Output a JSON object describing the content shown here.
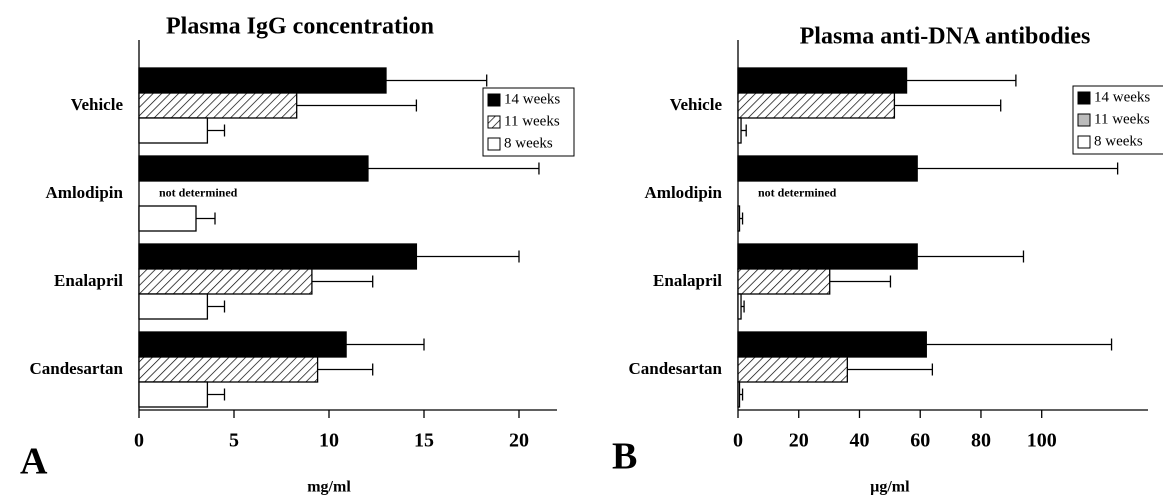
{
  "chart_data": [
    {
      "type": "bar",
      "orientation": "horizontal",
      "title": "Plasma IgG concentration",
      "panel_label": "A",
      "xlabel": "mg/ml",
      "categories": [
        "Vehicle",
        "Amlodipin",
        "Enalapril",
        "Candesartan"
      ],
      "series": [
        {
          "name": "14 weeks",
          "color": "#000000",
          "pattern": "solid",
          "values": [
            13.0,
            12.05,
            14.6,
            10.9
          ],
          "errors": [
            5.3,
            9.0,
            5.4,
            4.1
          ]
        },
        {
          "name": "11 weeks",
          "color": "#ffffff",
          "pattern": "hatch",
          "values": [
            8.3,
            null,
            9.1,
            9.4
          ],
          "errors": [
            6.3,
            null,
            3.2,
            2.9
          ]
        },
        {
          "name": "8 weeks",
          "color": "#ffffff",
          "pattern": "solid",
          "values": [
            3.6,
            3.0,
            3.6,
            3.6
          ],
          "errors": [
            0.9,
            1.0,
            0.9,
            0.9
          ]
        }
      ],
      "annotation": "not determined",
      "xlim": [
        0,
        22
      ],
      "xticks": [
        0,
        5,
        10,
        15,
        20
      ],
      "legend": "upper right",
      "legend_swatch": "pattern"
    },
    {
      "type": "bar",
      "orientation": "horizontal",
      "title": "Plasma anti-DNA antibodies",
      "panel_label": "B",
      "xlabel": "µg/ml",
      "categories": [
        "Vehicle",
        "Amlodipin",
        "Enalapril",
        "Candesartan"
      ],
      "series": [
        {
          "name": "14 weeks",
          "color": "#000000",
          "pattern": "solid",
          "values": [
            55.5,
            59,
            59,
            62
          ],
          "errors": [
            36,
            66,
            35,
            61
          ]
        },
        {
          "name": "11 weeks",
          "color": "#bbbbbb",
          "pattern": "hatch",
          "values": [
            51.5,
            null,
            30.2,
            36
          ],
          "errors": [
            35,
            null,
            20,
            28
          ]
        },
        {
          "name": "8 weeks",
          "color": "#ffffff",
          "pattern": "solid",
          "values": [
            1,
            0.5,
            1,
            0.5
          ],
          "errors": [
            1.7,
            1,
            1,
            1
          ]
        }
      ],
      "annotation": "not determined",
      "xlim": [
        0,
        135
      ],
      "xticks": [
        0,
        20,
        40,
        60,
        80,
        100
      ],
      "legend": "upper right",
      "legend_swatch": "solid"
    }
  ]
}
